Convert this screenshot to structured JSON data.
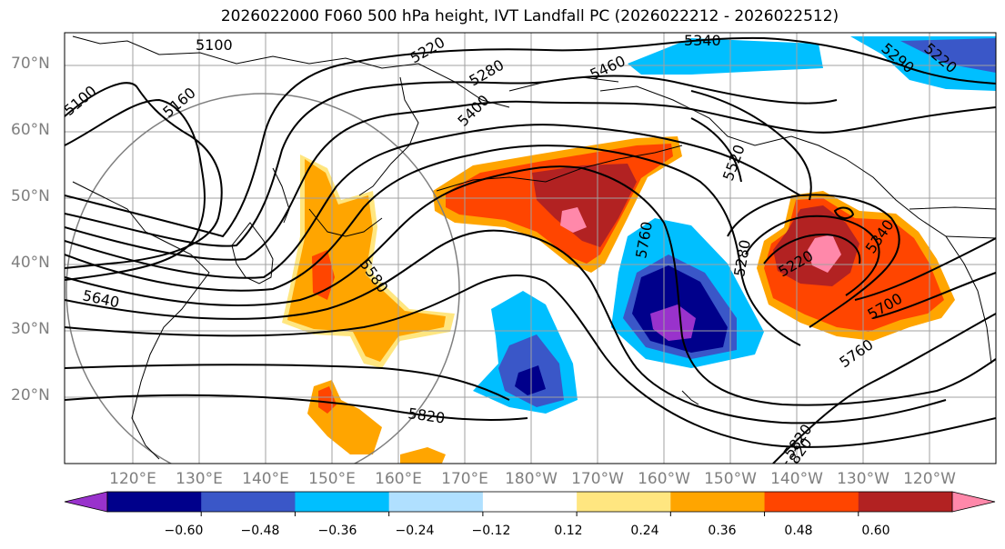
{
  "title": "2026022000 F060 500 hPa height, IVT Landfall PC (2026022212 - 2026022512)",
  "lat_labels": [
    "70°N",
    "60°N",
    "50°N",
    "40°N",
    "30°N",
    "20°N"
  ],
  "lon_labels": [
    "120°E",
    "130°E",
    "140°E",
    "150°E",
    "160°E",
    "170°E",
    "180°W",
    "170°W",
    "160°W",
    "150°W",
    "140°W",
    "130°W",
    "120°W"
  ],
  "contour_labels": [
    "5100",
    "5160",
    "5100",
    "5220",
    "5280",
    "5340",
    "5400",
    "5460",
    "5520",
    "5580",
    "5640",
    "5760",
    "5820",
    "5820",
    "5280",
    "5220",
    "5340",
    "5700",
    "5760",
    "5820",
    "5290",
    "5220"
  ],
  "colorbar": {
    "ticks": [
      "−0.60",
      "−0.48",
      "−0.36",
      "−0.24",
      "−0.12",
      "0.12",
      "0.24",
      "0.36",
      "0.48",
      "0.60"
    ],
    "colors": [
      "#9932cc",
      "#00008b",
      "#3a57c8",
      "#00bfff",
      "#b0e0ff",
      "#ffffff",
      "#ffe680",
      "#ffa500",
      "#ff4500",
      "#b22222",
      "#ff88aa"
    ]
  }
}
